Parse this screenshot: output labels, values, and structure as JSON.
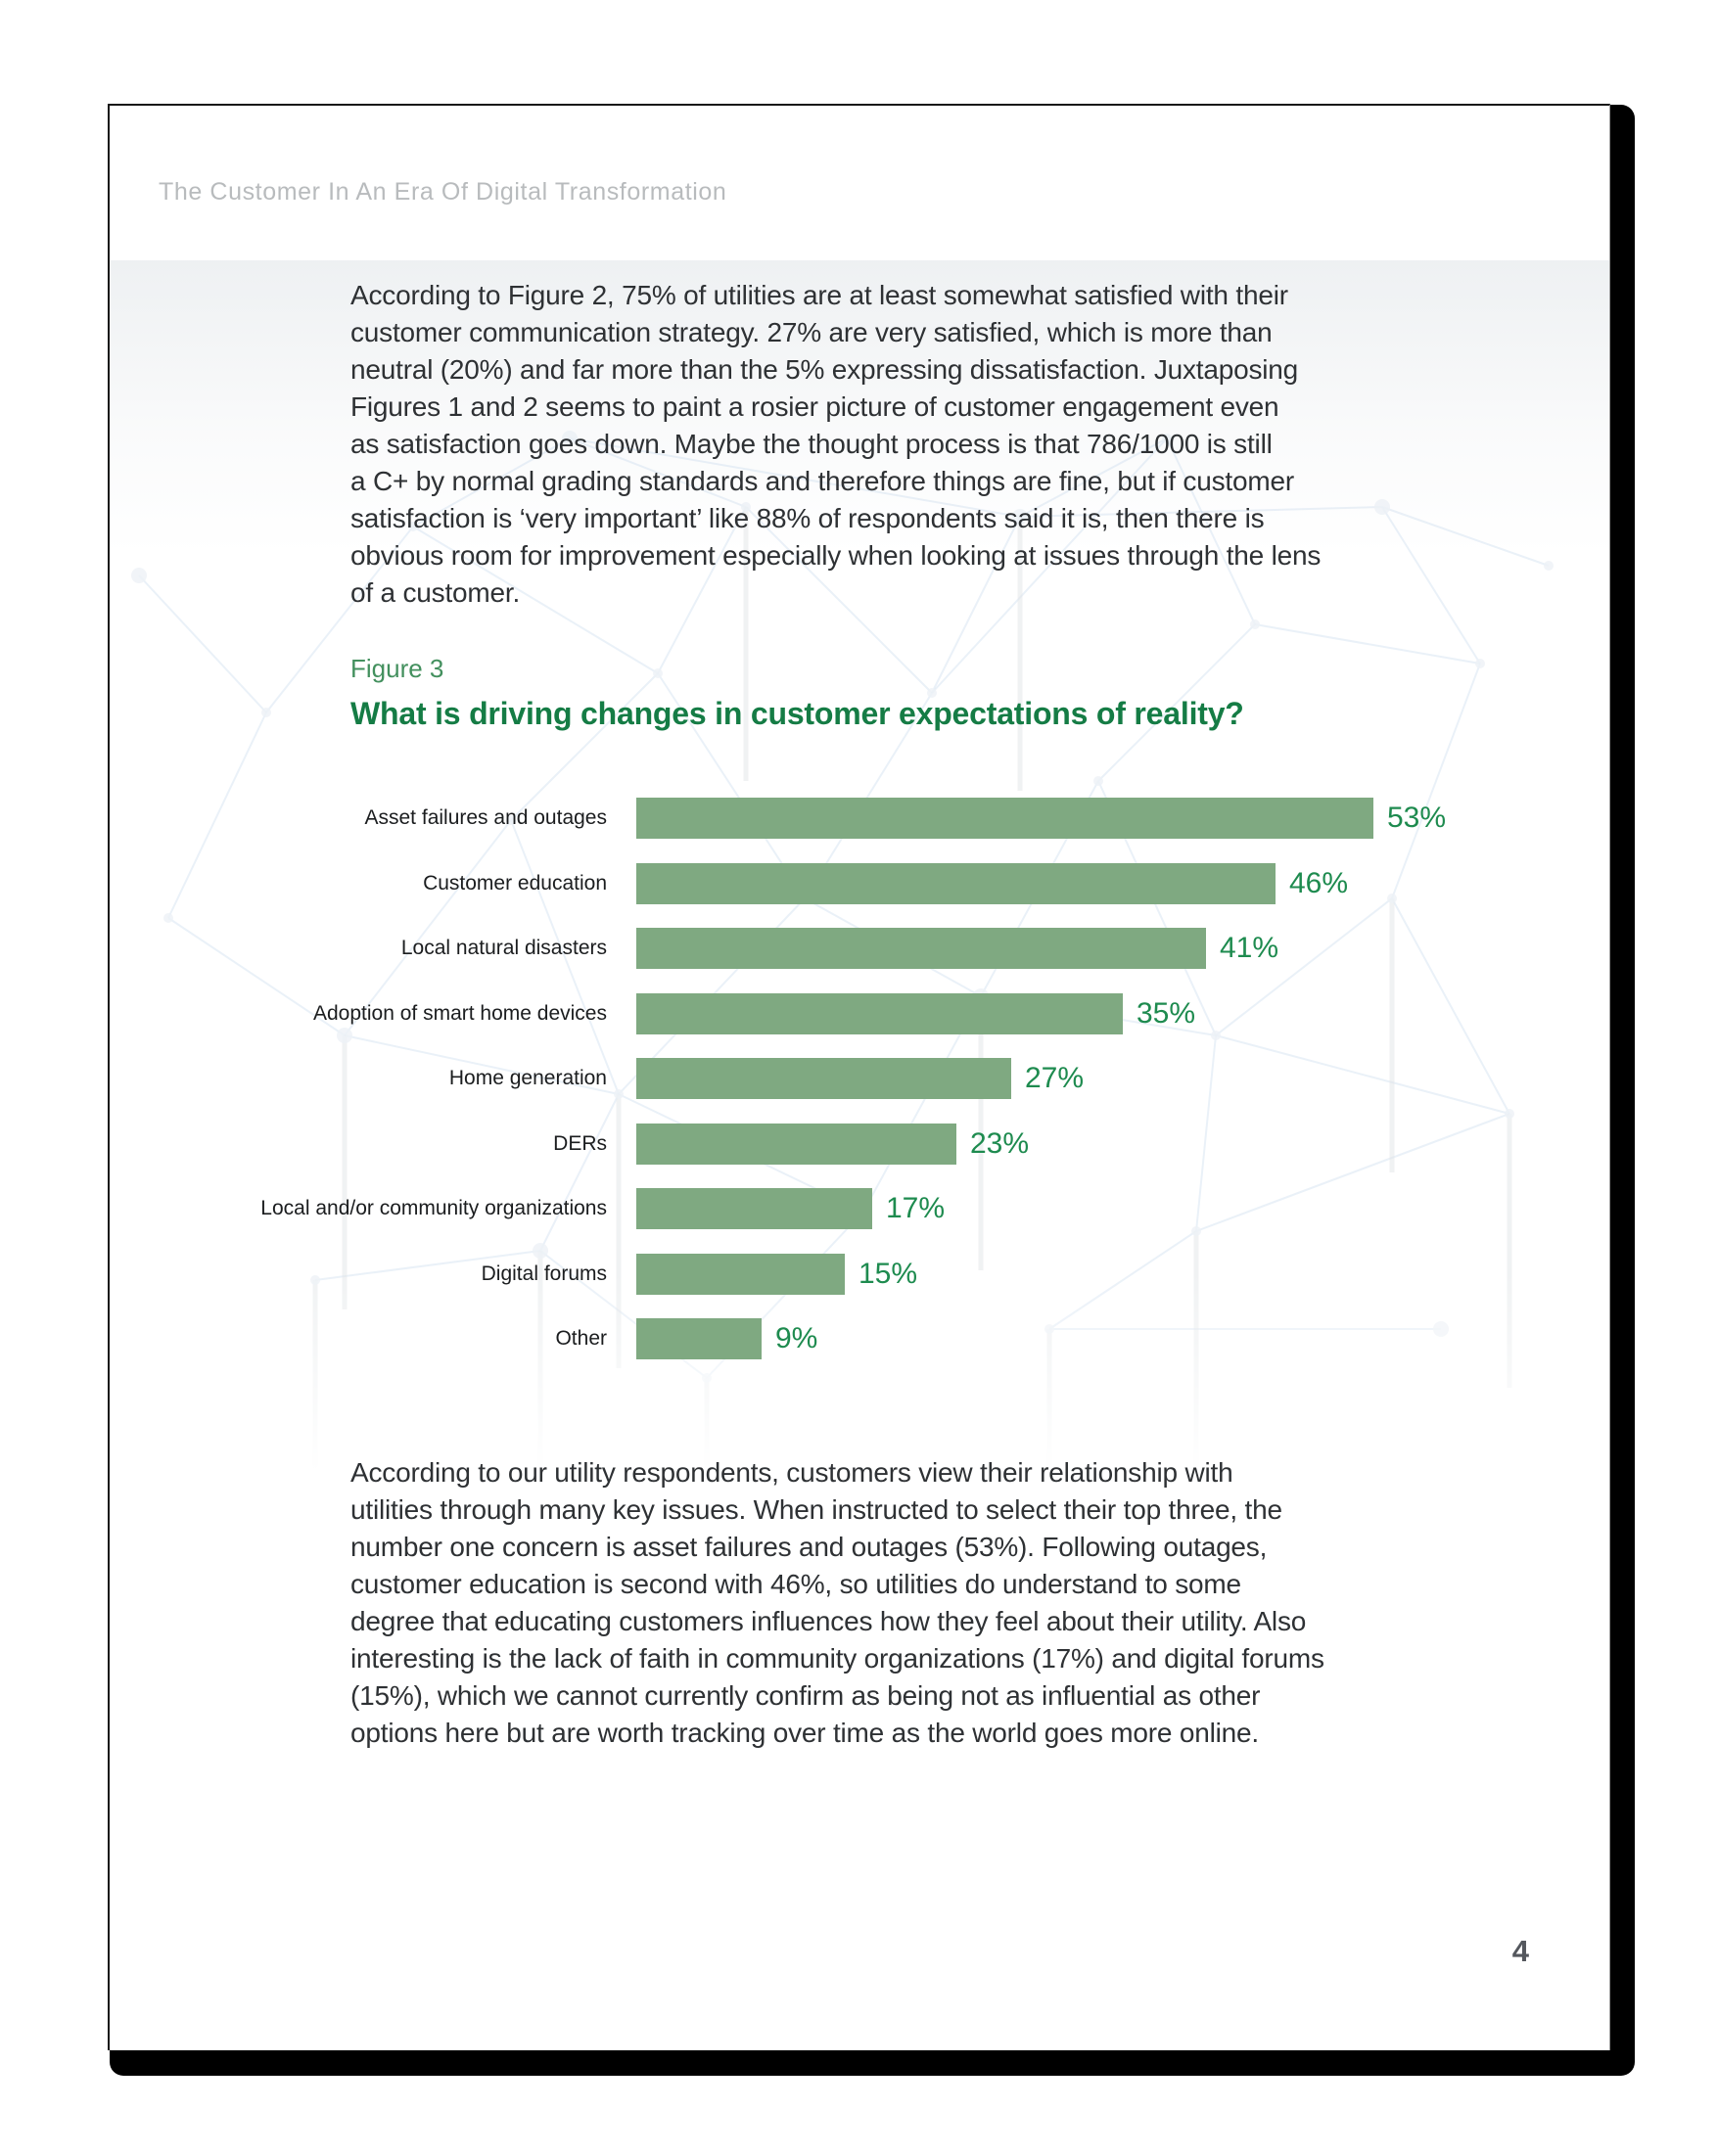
{
  "document": {
    "header": "The Customer In An Era Of Digital Transformation",
    "page_number": "4"
  },
  "body": {
    "paragraph_1_lines": [
      "According to Figure 2, 75% of utilities are at least somewhat satisfied with their",
      "customer communication strategy. 27% are very satisfied, which is more than",
      "neutral (20%) and far more than the 5% expressing dissatisfaction. Juxtaposing",
      "Figures 1 and 2 seems to paint a rosier picture of customer engagement even",
      "as satisfaction goes down. Maybe the thought process is that 786/1000 is still",
      "a C+ by normal grading standards and therefore things are fine, but if customer",
      "satisfaction is ‘very important’ like 88% of respondents said it is, then there is",
      "obvious room for improvement especially when looking at issues through the lens",
      "of a customer."
    ],
    "paragraph_2_lines": [
      "According to our utility respondents, customers view their relationship with",
      "utilities through many key issues. When instructed to select their top three, the",
      "number one concern is asset failures and outages (53%). Following outages,",
      "customer education is second with 46%, so utilities do understand to some",
      "degree that educating customers influences how they feel about their utility. Also",
      "interesting is the lack of faith in community organizations (17%) and digital forums",
      "(15%), which we cannot currently confirm as being not as influential as other",
      "options here but are worth tracking over time as the world goes more online."
    ]
  },
  "figure": {
    "label": "Figure 3",
    "title": "What is driving changes in customer expectations of reality?"
  },
  "chart_data": {
    "type": "bar",
    "orientation": "horizontal",
    "title": "What is driving changes in customer expectations of reality?",
    "categories": [
      "Asset failures and outages",
      "Customer education",
      "Local natural disasters",
      "Adoption of smart home devices",
      "Home generation",
      "DERs",
      "Local and/or community organizations",
      "Digital forums",
      "Other"
    ],
    "values": [
      53,
      46,
      41,
      35,
      27,
      23,
      17,
      15,
      9
    ],
    "value_labels": [
      "53%",
      "46%",
      "41%",
      "35%",
      "27%",
      "23%",
      "17%",
      "15%",
      "9%"
    ],
    "xlim": [
      0,
      60
    ],
    "grid": false,
    "legend": false,
    "bar_color": "#7fa981",
    "value_label_color": "#1e8b4f"
  },
  "colors": {
    "figure_label": "#43905e",
    "figure_title": "#157c45",
    "bar_fill": "#7fa981",
    "value_label": "#1e8b4f",
    "header_text": "#b8bbbd",
    "body_text": "#2e3134",
    "page_number": "#54575d"
  }
}
